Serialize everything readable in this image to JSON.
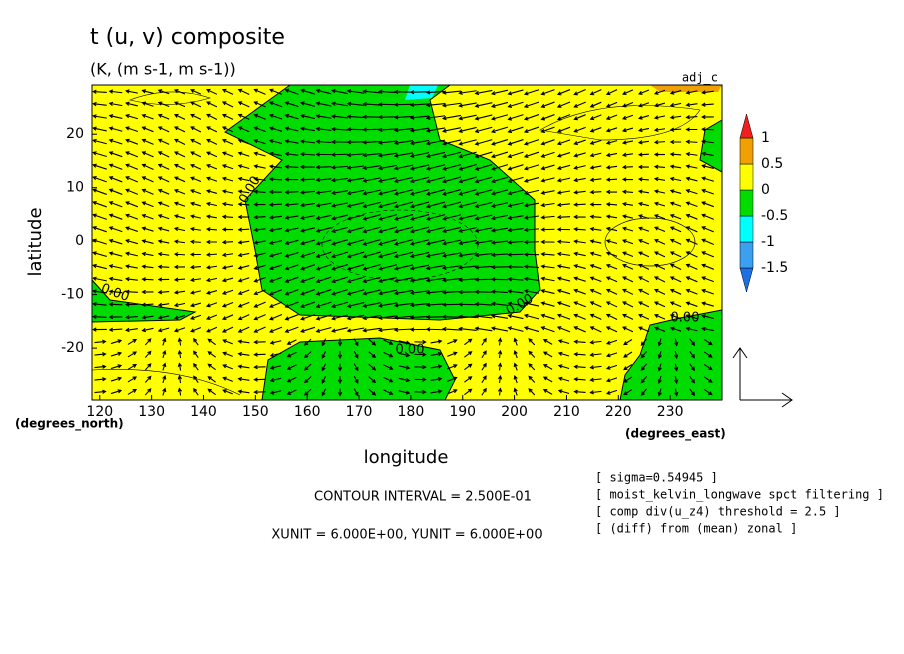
{
  "chart_data": {
    "type": "contour",
    "title": "t (u, v) composite",
    "subtitle": "(K, (m s-1, m s-1))",
    "tag": "adj_c",
    "x_label": "longitude",
    "y_label": "latitude",
    "y_unit_label": "(degrees_north)",
    "x_unit_label": "(degrees_east)",
    "contour_interval": "CONTOUR INTERVAL = 2.500E-01",
    "vector_units": "XUNIT = 6.000E+00, YUNIT = 6.000E+00",
    "notes": [
      "[ sigma=0.54945 ]",
      "[ moist_kelvin_longwave spct filtering ]",
      "[ comp div(u_z4) threshold = 2.5 ]",
      "[ (diff) from (mean) zonal ]"
    ],
    "xlim": [
      118.5,
      240
    ],
    "ylim": [
      -29.7,
      29.2
    ],
    "xticks": [
      120,
      130,
      140,
      150,
      160,
      170,
      180,
      190,
      200,
      210,
      220,
      230
    ],
    "yticks": [
      -20,
      -10,
      0,
      10,
      20
    ],
    "contour_labels": [
      {
        "value": 0,
        "label": "0.00"
      },
      {
        "value": 0,
        "label": "0.00"
      },
      {
        "value": 0,
        "label": "0.00"
      },
      {
        "value": 0,
        "label": "0.00"
      },
      {
        "value": 0,
        "label": "0.00"
      }
    ],
    "colorbar": {
      "levels": [
        -1.5,
        -1,
        -0.5,
        0,
        0.5,
        1
      ],
      "colors": [
        "#1e6ee6",
        "#3ca0f0",
        "#00ffff",
        "#00dc00",
        "#ffff00",
        "#f0a000",
        "#f01e1e"
      ]
    }
  }
}
